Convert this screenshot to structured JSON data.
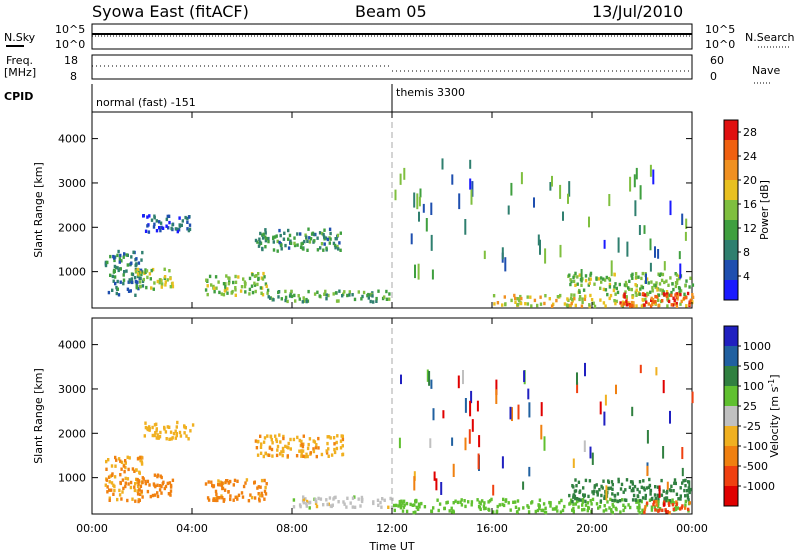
{
  "header": {
    "title": "Syowa East (fitACF)",
    "beam": "Beam 05",
    "date": "13/Jul/2010"
  },
  "top_strip": {
    "left_label": "N.Sky",
    "left_ticks": [
      "10^5",
      "10^0"
    ],
    "right_label": "N.Search",
    "right_ticks": [
      "10^5",
      "10^0"
    ]
  },
  "freq_strip": {
    "left_label_line1": "Freq.",
    "left_label_line2": "[MHz]",
    "left_ticks": [
      "18",
      "8"
    ],
    "right_label": "Nave",
    "right_ticks": [
      "60",
      "0"
    ]
  },
  "cpid": {
    "label": "CPID",
    "segments": [
      {
        "text": "normal (fast) -151",
        "start_hour": 0
      },
      {
        "text": "themis 3300",
        "start_hour": 12
      }
    ]
  },
  "colors": {
    "power_scale": [
      "#1a1aff",
      "#1f4faf",
      "#2f7f6f",
      "#3f9f3f",
      "#7fbf3f",
      "#e8c020",
      "#f09020",
      "#f06010",
      "#e01010"
    ],
    "velocity_scale": [
      "#2020c0",
      "#2060a0",
      "#308040",
      "#60c030",
      "#c0c0c0",
      "#f0b020",
      "#f08010",
      "#f04010",
      "#e00000"
    ]
  },
  "chart_data": [
    {
      "type": "heatmap",
      "name": "power",
      "xlabel": "",
      "ylabel": "Slant Range [km]",
      "x_range_hours": [
        0,
        24
      ],
      "ylim": [
        180,
        4600
      ],
      "y_ticks": [
        "1000",
        "2000",
        "3000",
        "4000"
      ],
      "colorbar_label": "Power [dB]",
      "colorbar_ticks": [
        "4",
        "8",
        "12",
        "16",
        "20",
        "24",
        "28"
      ],
      "colorbar_range": [
        0,
        30
      ],
      "regions": [
        {
          "t0": 0.5,
          "t1": 2.0,
          "r0": 500,
          "r1": 1500,
          "level": 8
        },
        {
          "t0": 1.7,
          "t1": 3.2,
          "r0": 600,
          "r1": 1100,
          "level": 16
        },
        {
          "t0": 4.5,
          "t1": 7.0,
          "r0": 500,
          "r1": 1000,
          "level": 14
        },
        {
          "t0": 2.0,
          "t1": 4.0,
          "r0": 1900,
          "r1": 2300,
          "level": 6
        },
        {
          "t0": 6.5,
          "t1": 10.0,
          "r0": 1500,
          "r1": 2000,
          "level": 10
        },
        {
          "t0": 7.0,
          "t1": 12.0,
          "r0": 350,
          "r1": 600,
          "level": 12
        },
        {
          "t0": 16.0,
          "t1": 24.0,
          "r0": 250,
          "r1": 500,
          "level": 18
        },
        {
          "t0": 19.0,
          "t1": 24.0,
          "r0": 500,
          "r1": 1000,
          "level": 14
        },
        {
          "t0": 21.0,
          "t1": 24.0,
          "r0": 250,
          "r1": 550,
          "level": 26
        }
      ]
    },
    {
      "type": "heatmap",
      "name": "velocity",
      "xlabel": "Time UT",
      "ylabel": "Slant Range [km]",
      "x_range_hours": [
        0,
        24
      ],
      "x_ticks": [
        "00:00",
        "04:00",
        "08:00",
        "12:00",
        "16:00",
        "20:00",
        "00:00"
      ],
      "ylim": [
        180,
        4600
      ],
      "y_ticks": [
        "1000",
        "2000",
        "3000",
        "4000"
      ],
      "colorbar_label": "Velocity [m s^-1]",
      "colorbar_ticks": [
        "1000",
        "500",
        "100",
        "25",
        "-25",
        "-100",
        "-500",
        "-1000"
      ],
      "regions": [
        {
          "t0": 0.5,
          "t1": 2.0,
          "r0": 500,
          "r1": 1500,
          "vel": -100
        },
        {
          "t0": 1.7,
          "t1": 3.2,
          "r0": 600,
          "r1": 1100,
          "vel": -300
        },
        {
          "t0": 4.5,
          "t1": 7.0,
          "r0": 500,
          "r1": 1000,
          "vel": -150
        },
        {
          "t0": 2.0,
          "t1": 4.0,
          "r0": 1900,
          "r1": 2300,
          "vel": -60
        },
        {
          "t0": 6.5,
          "t1": 10.0,
          "r0": 1500,
          "r1": 2000,
          "vel": -80
        },
        {
          "t0": 8.0,
          "t1": 12.0,
          "r0": 350,
          "r1": 600,
          "vel": 0
        },
        {
          "t0": 12.0,
          "t1": 24.0,
          "r0": 250,
          "r1": 550,
          "vel": 60
        },
        {
          "t0": 19.0,
          "t1": 24.0,
          "r0": 500,
          "r1": 1000,
          "vel": 300
        },
        {
          "t0": 22.0,
          "t1": 24.0,
          "r0": 250,
          "r1": 500,
          "vel": -700
        }
      ]
    }
  ]
}
